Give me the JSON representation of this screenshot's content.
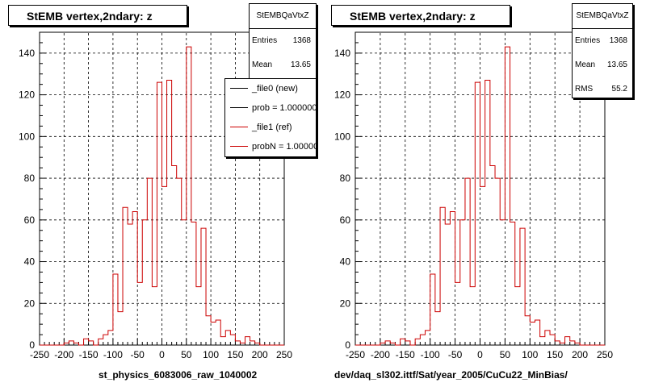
{
  "footer_text": "",
  "chart_data": [
    {
      "type": "histogram",
      "title": "StEMB  vertex,2ndary: z",
      "xlabel": "st_physics_6083006_raw_1040002",
      "xlim": [
        -250,
        250
      ],
      "ylim": [
        0,
        150
      ],
      "x_ticks": [
        -250,
        -200,
        -150,
        -100,
        -50,
        0,
        50,
        100,
        150,
        200,
        250
      ],
      "y_ticks": [
        0,
        20,
        40,
        60,
        80,
        100,
        120,
        140
      ],
      "grid": true,
      "bin_edges": [
        -250,
        -240,
        -230,
        -220,
        -210,
        -200,
        -190,
        -180,
        -170,
        -160,
        -150,
        -140,
        -130,
        -120,
        -110,
        -100,
        -90,
        -80,
        -70,
        -60,
        -50,
        -40,
        -30,
        -20,
        -10,
        0,
        10,
        20,
        30,
        40,
        50,
        60,
        70,
        80,
        90,
        100,
        110,
        120,
        130,
        140,
        150,
        160,
        170,
        180,
        190,
        200,
        210,
        220,
        230,
        240,
        250
      ],
      "series": [
        {
          "name": "_file1 (ref)",
          "color": "#cc0000",
          "values": [
            0,
            0,
            0,
            0,
            0,
            1,
            2,
            1,
            0,
            3,
            2,
            0,
            3,
            5,
            7,
            34,
            16,
            66,
            58,
            64,
            30,
            60,
            80,
            28,
            126,
            76,
            127,
            86,
            80,
            60,
            143,
            59,
            28,
            56,
            14,
            11,
            12,
            4,
            7,
            5,
            2,
            1,
            4,
            2,
            1,
            0,
            0,
            0,
            0,
            0
          ]
        }
      ],
      "stats": {
        "name": "StEMBQaVtxZ",
        "entries_label": "Entries",
        "entries": "1368",
        "mean_label": "Mean",
        "mean": "13.65"
      },
      "legend": {
        "placement": "top-right",
        "entries": [
          {
            "label": "_file0 (new)",
            "color": "#000000"
          },
          {
            "label": "prob = 1.000000",
            "color": "#000000"
          },
          {
            "label": "_file1 (ref)",
            "color": "#cc0000"
          },
          {
            "label": "probN = 1.000000",
            "color": "#cc0000"
          }
        ]
      }
    },
    {
      "type": "histogram",
      "title": "StEMB  vertex,2ndary: z",
      "xlabel": "dev/daq_sl302.ittf/Sat/year_2005/CuCu22_MinBias/",
      "xlim": [
        -250,
        250
      ],
      "ylim": [
        0,
        150
      ],
      "x_ticks": [
        -250,
        -200,
        -150,
        -100,
        -50,
        0,
        50,
        100,
        150,
        200,
        250
      ],
      "y_ticks": [
        0,
        20,
        40,
        60,
        80,
        100,
        120,
        140
      ],
      "grid": true,
      "bin_edges": [
        -250,
        -240,
        -230,
        -220,
        -210,
        -200,
        -190,
        -180,
        -170,
        -160,
        -150,
        -140,
        -130,
        -120,
        -110,
        -100,
        -90,
        -80,
        -70,
        -60,
        -50,
        -40,
        -30,
        -20,
        -10,
        0,
        10,
        20,
        30,
        40,
        50,
        60,
        70,
        80,
        90,
        100,
        110,
        120,
        130,
        140,
        150,
        160,
        170,
        180,
        190,
        200,
        210,
        220,
        230,
        240,
        250
      ],
      "series": [
        {
          "name": "",
          "color": "#cc0000",
          "values": [
            0,
            0,
            0,
            0,
            0,
            1,
            2,
            1,
            0,
            3,
            2,
            0,
            3,
            5,
            7,
            34,
            16,
            66,
            58,
            64,
            30,
            60,
            80,
            28,
            126,
            76,
            127,
            86,
            80,
            60,
            143,
            59,
            28,
            56,
            14,
            11,
            12,
            4,
            7,
            5,
            2,
            1,
            4,
            2,
            1,
            0,
            0,
            0,
            0,
            0
          ]
        }
      ],
      "stats": {
        "name": "StEMBQaVtxZ",
        "entries_label": "Entries",
        "entries": "1368",
        "mean_label": "Mean",
        "mean": "13.65",
        "rms_label": "RMS",
        "rms": "55.2"
      }
    }
  ]
}
